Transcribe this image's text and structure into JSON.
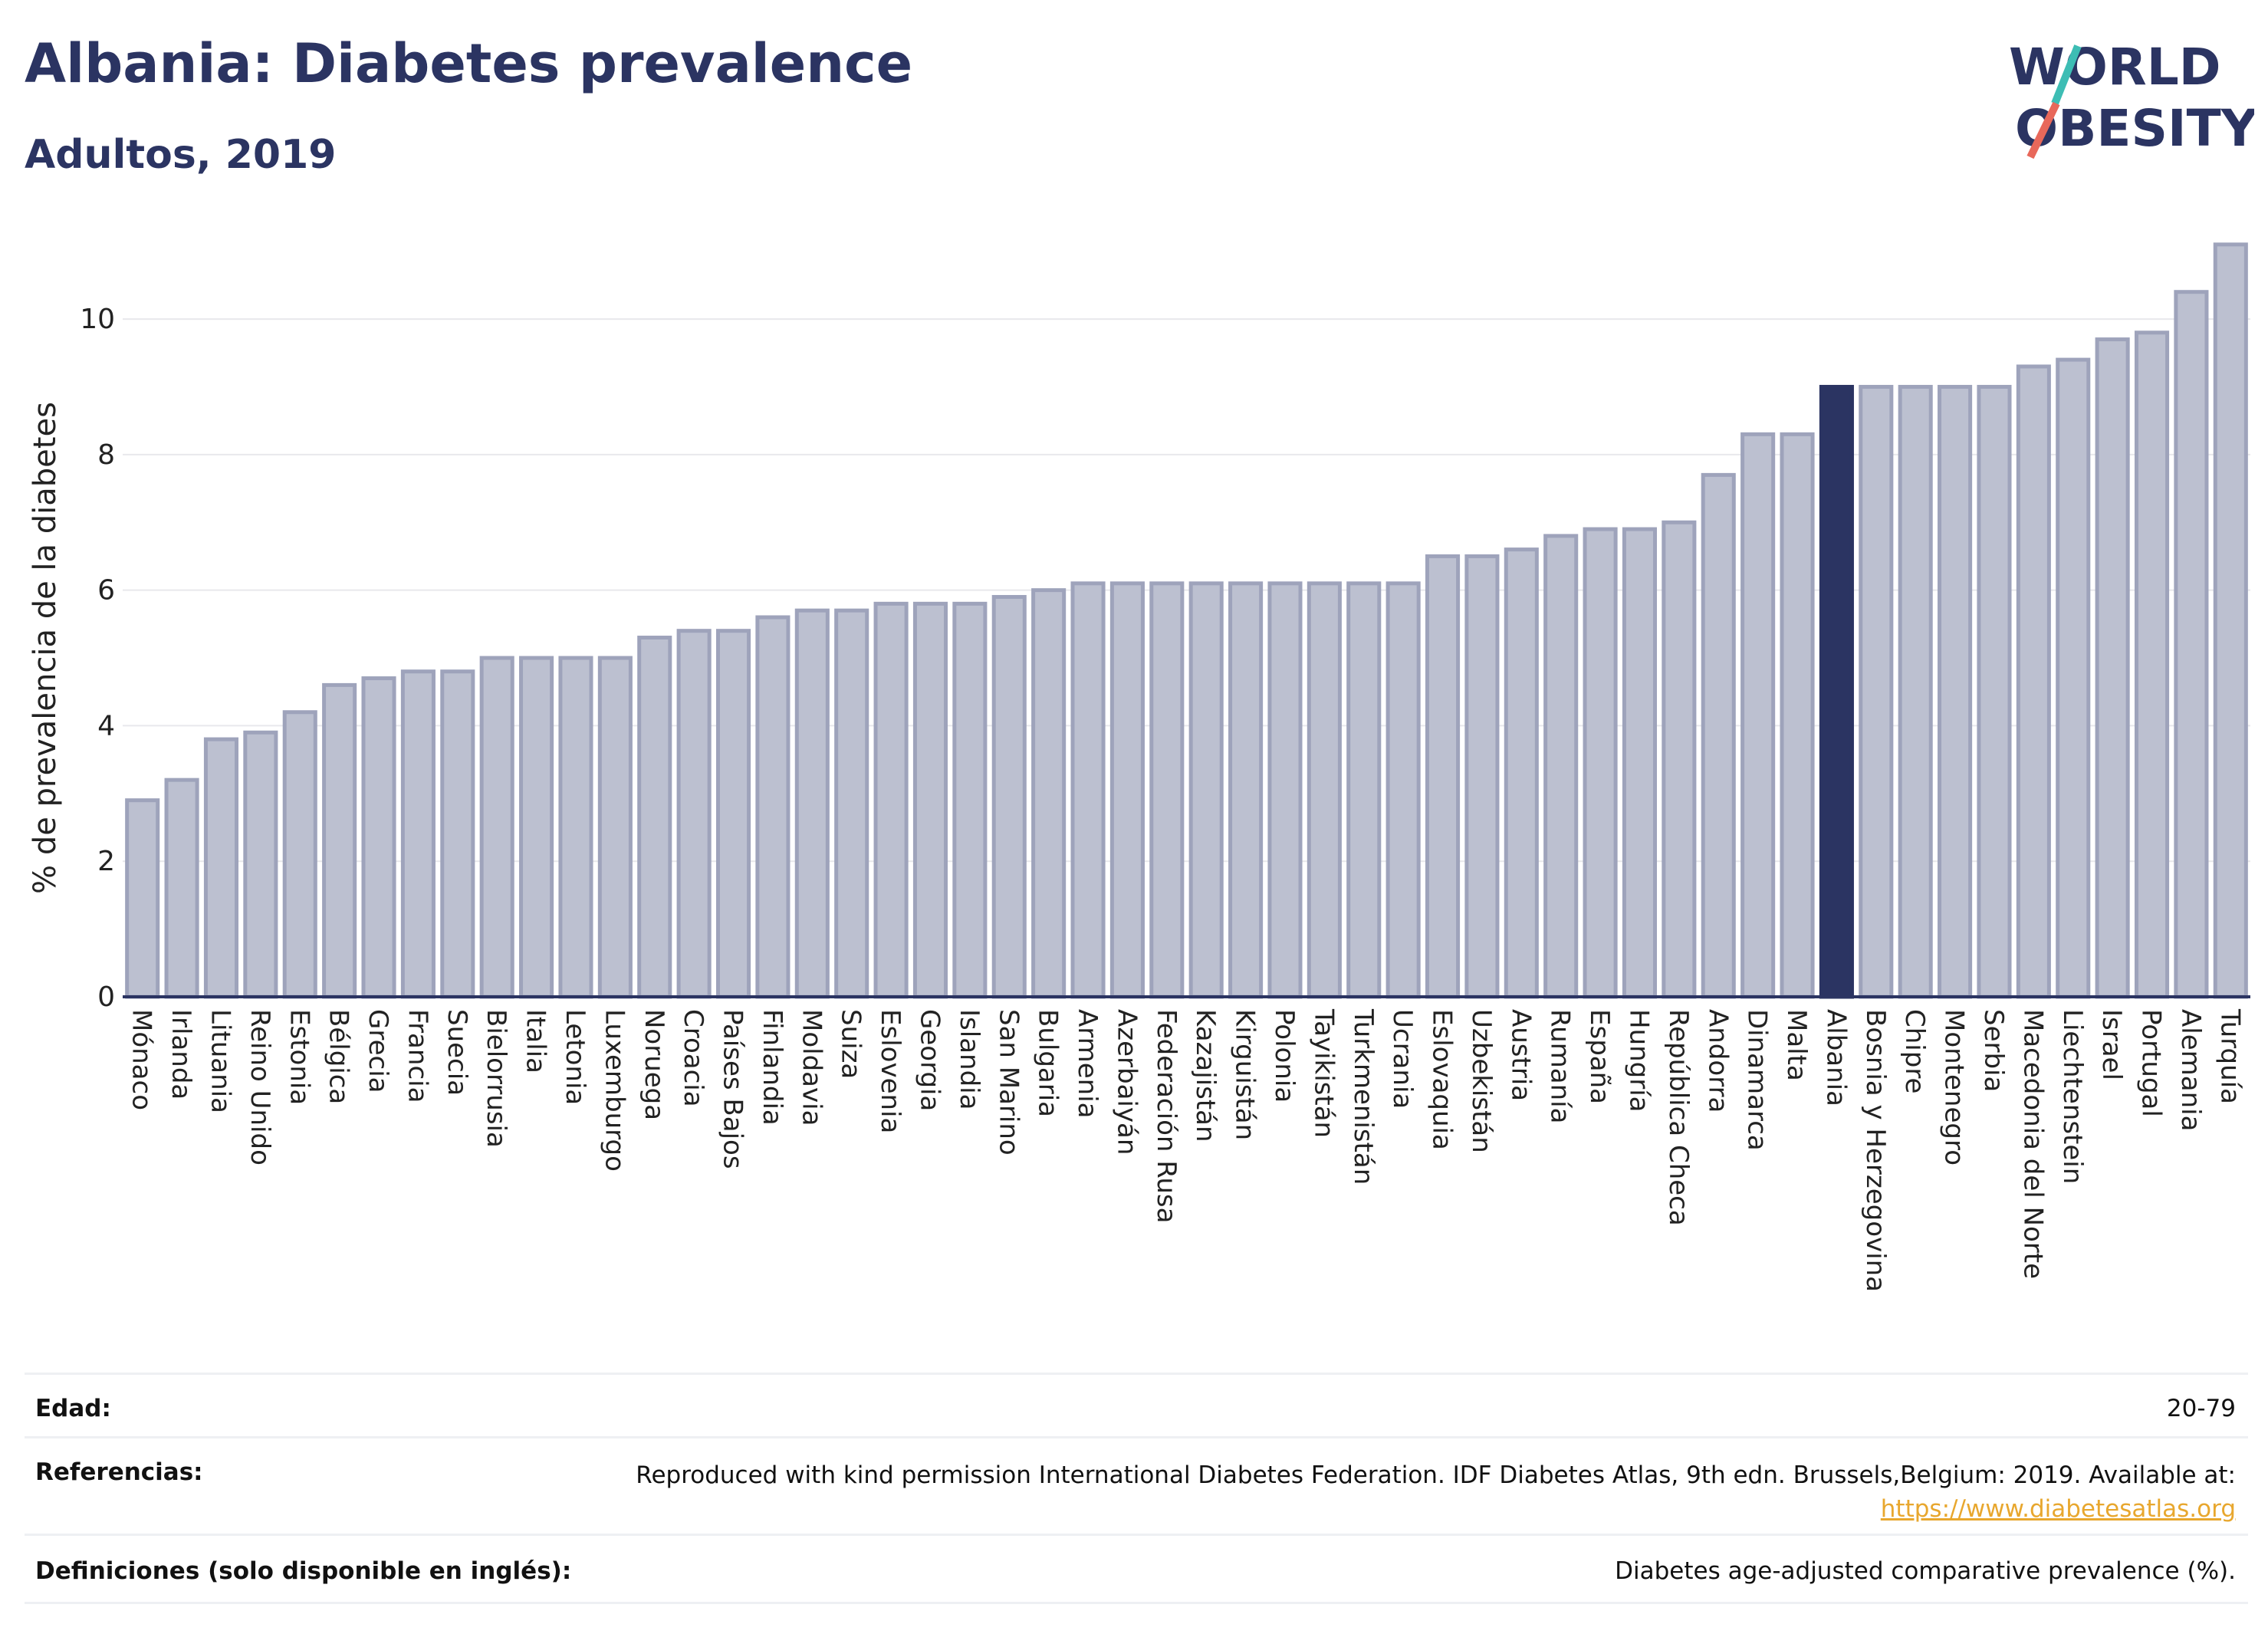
{
  "header": {
    "title": "Albania: Diabetes prevalence",
    "subtitle": "Adultos, 2019"
  },
  "logo": {
    "line1": "WORLD",
    "line2": "OBESITY"
  },
  "colors": {
    "highlight": "#2b3462",
    "bar_fill": "#bcc0d0",
    "bar_stroke": "#9ea3bb",
    "axis": "#2b3462",
    "grid": "#e8e8ec",
    "logo_slash_teal": "#3dbdb4",
    "logo_slash_coral": "#e8685a"
  },
  "chart_data": {
    "type": "bar",
    "ylabel": "% de prevalencia de la diabetes",
    "ylim": [
      0,
      11.2
    ],
    "yticks": [
      0,
      2,
      4,
      6,
      8,
      10
    ],
    "highlight": "Albania",
    "categories": [
      "Mónaco",
      "Irlanda",
      "Lituania",
      "Reino Unido",
      "Estonia",
      "Bélgica",
      "Grecia",
      "Francia",
      "Suecia",
      "Bielorrusia",
      "Italia",
      "Letonia",
      "Luxemburgo",
      "Noruega",
      "Croacia",
      "Países Bajos",
      "Finlandia",
      "Moldavia",
      "Suiza",
      "Eslovenia",
      "Georgia",
      "Islandia",
      "San Marino",
      "Bulgaria",
      "Armenia",
      "Azerbaiyán",
      "Federación Rusa",
      "Kazajistán",
      "Kirguistán",
      "Polonia",
      "Tayikistán",
      "Turkmenistán",
      "Ucrania",
      "Eslovaquia",
      "Uzbekistán",
      "Austria",
      "Rumanía",
      "España",
      "Hungría",
      "República Checa",
      "Andorra",
      "Dinamarca",
      "Malta",
      "Albania",
      "Bosnia y Herzegovina",
      "Chipre",
      "Montenegro",
      "Serbia",
      "Macedonia del Norte",
      "Liechtenstein",
      "Israel",
      "Portugal",
      "Alemania",
      "Turquía"
    ],
    "values": [
      2.9,
      3.2,
      3.8,
      3.9,
      4.2,
      4.6,
      4.7,
      4.8,
      4.8,
      5.0,
      5.0,
      5.0,
      5.0,
      5.3,
      5.4,
      5.4,
      5.6,
      5.7,
      5.7,
      5.8,
      5.8,
      5.8,
      5.9,
      6.0,
      6.1,
      6.1,
      6.1,
      6.1,
      6.1,
      6.1,
      6.1,
      6.1,
      6.1,
      6.5,
      6.5,
      6.6,
      6.8,
      6.9,
      6.9,
      7.0,
      7.7,
      8.3,
      8.3,
      9.0,
      9.0,
      9.0,
      9.0,
      9.0,
      9.3,
      9.4,
      9.7,
      9.8,
      10.4,
      11.1
    ]
  },
  "info": {
    "age_label": "Edad:",
    "age_value": "20-79",
    "refs_label": "Referencias:",
    "refs_value": "Reproduced with kind permission International Diabetes Federation. IDF Diabetes Atlas, 9th edn. Brussels,Belgium: 2019. Available at:",
    "refs_link": "https://www.diabetesatlas.org",
    "defs_label": "Definiciones (solo disponible en inglés):",
    "defs_value": "Diabetes age-adjusted comparative prevalence (%)."
  }
}
